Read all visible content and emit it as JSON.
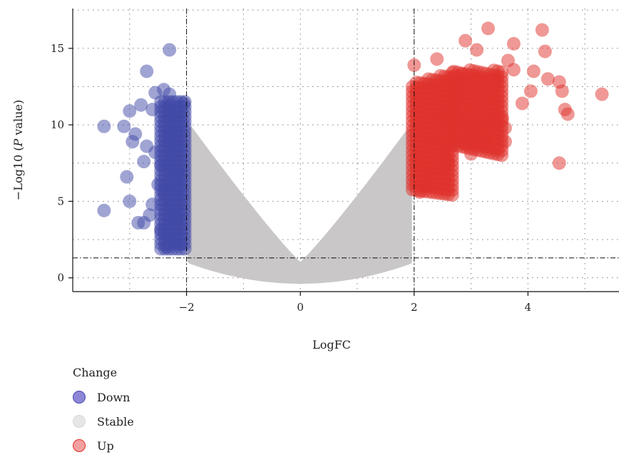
{
  "chart_data": {
    "type": "scatter",
    "title": "",
    "xlabel": "LogFC",
    "ylabel_parts": [
      "−Log10 (",
      "P",
      " value)"
    ],
    "xlim": [
      -4.0,
      5.6
    ],
    "ylim": [
      -0.9,
      17.6
    ],
    "x_ticks": [
      -2,
      0,
      2,
      4
    ],
    "x_tick_labels": [
      "−2",
      "0",
      "2",
      "4"
    ],
    "y_ticks": [
      0,
      5,
      10,
      15
    ],
    "y_tick_labels": [
      "0",
      "5",
      "10",
      "15"
    ],
    "grid": true,
    "grid_style": "dotted",
    "threshold_lines": {
      "x": [
        -2,
        2
      ],
      "y": [
        1.3
      ]
    },
    "legend": {
      "title": "Change",
      "placement": "bottom-left",
      "entries": [
        {
          "label": "Down",
          "fill": "#8c87d6",
          "stroke": "#4b48b0"
        },
        {
          "label": "Stable",
          "fill": "#e6e6e6",
          "stroke": "#d8d8d8"
        },
        {
          "label": "Up",
          "fill": "#f2a0a0",
          "stroke": "#e0312b"
        }
      ]
    },
    "colors": {
      "down": "#4149a8",
      "stable": "#c9c7c7",
      "up": "#e0312b"
    },
    "series": [
      {
        "name": "Down",
        "points": [
          [
            -2.3,
            14.9
          ],
          [
            -2.7,
            13.5
          ],
          [
            -2.4,
            12.3
          ],
          [
            -2.55,
            12.1
          ],
          [
            -2.3,
            12.0
          ],
          [
            -2.8,
            11.3
          ],
          [
            -3.0,
            10.9
          ],
          [
            -2.6,
            11.0
          ],
          [
            -3.45,
            9.9
          ],
          [
            -3.1,
            9.9
          ],
          [
            -2.9,
            9.4
          ],
          [
            -2.95,
            8.9
          ],
          [
            -2.7,
            8.6
          ],
          [
            -2.55,
            8.2
          ],
          [
            -2.75,
            7.6
          ],
          [
            -2.45,
            7.4
          ],
          [
            -3.05,
            6.6
          ],
          [
            -2.5,
            6.1
          ],
          [
            -3.0,
            5.0
          ],
          [
            -2.6,
            4.8
          ],
          [
            -3.45,
            4.4
          ],
          [
            -2.65,
            4.1
          ],
          [
            -2.75,
            3.6
          ],
          [
            -2.85,
            3.6
          ],
          [
            -2.45,
            3.1
          ],
          [
            -2.3,
            2.6
          ],
          [
            -2.1,
            2.2
          ],
          [
            -2.35,
            2.0
          ],
          [
            -2.2,
            9.6
          ],
          [
            -2.25,
            10.7
          ],
          [
            -2.15,
            6.9
          ],
          [
            -2.4,
            5.6
          ],
          [
            -2.2,
            3.9
          ],
          [
            -2.05,
            11.4
          ],
          [
            -2.3,
            8.9
          ]
        ]
      },
      {
        "name": "Up",
        "points": [
          [
            3.3,
            16.3
          ],
          [
            4.25,
            16.2
          ],
          [
            2.9,
            15.5
          ],
          [
            3.75,
            15.3
          ],
          [
            3.1,
            14.9
          ],
          [
            4.3,
            14.8
          ],
          [
            2.4,
            14.3
          ],
          [
            3.65,
            14.2
          ],
          [
            4.1,
            13.5
          ],
          [
            3.45,
            13.0
          ],
          [
            4.35,
            13.0
          ],
          [
            4.55,
            12.8
          ],
          [
            4.05,
            12.2
          ],
          [
            4.6,
            12.2
          ],
          [
            5.3,
            12.0
          ],
          [
            3.9,
            11.4
          ],
          [
            4.65,
            11.0
          ],
          [
            4.7,
            10.7
          ],
          [
            3.55,
            10.4
          ],
          [
            3.3,
            10.2
          ],
          [
            3.0,
            9.8
          ],
          [
            3.6,
            9.8
          ],
          [
            3.25,
            9.0
          ],
          [
            3.1,
            8.9
          ],
          [
            3.6,
            8.9
          ],
          [
            2.9,
            8.7
          ],
          [
            3.0,
            8.1
          ],
          [
            4.55,
            7.5
          ],
          [
            2.6,
            7.5
          ],
          [
            2.25,
            6.8
          ],
          [
            2.2,
            6.0
          ],
          [
            2.1,
            5.6
          ],
          [
            2.75,
            12.0
          ],
          [
            2.45,
            10.5
          ],
          [
            2.7,
            11.4
          ],
          [
            2.3,
            9.0
          ],
          [
            2.85,
            13.3
          ],
          [
            2.0,
            13.9
          ],
          [
            2.55,
            7.9
          ],
          [
            3.75,
            13.6
          ]
        ]
      }
    ]
  }
}
